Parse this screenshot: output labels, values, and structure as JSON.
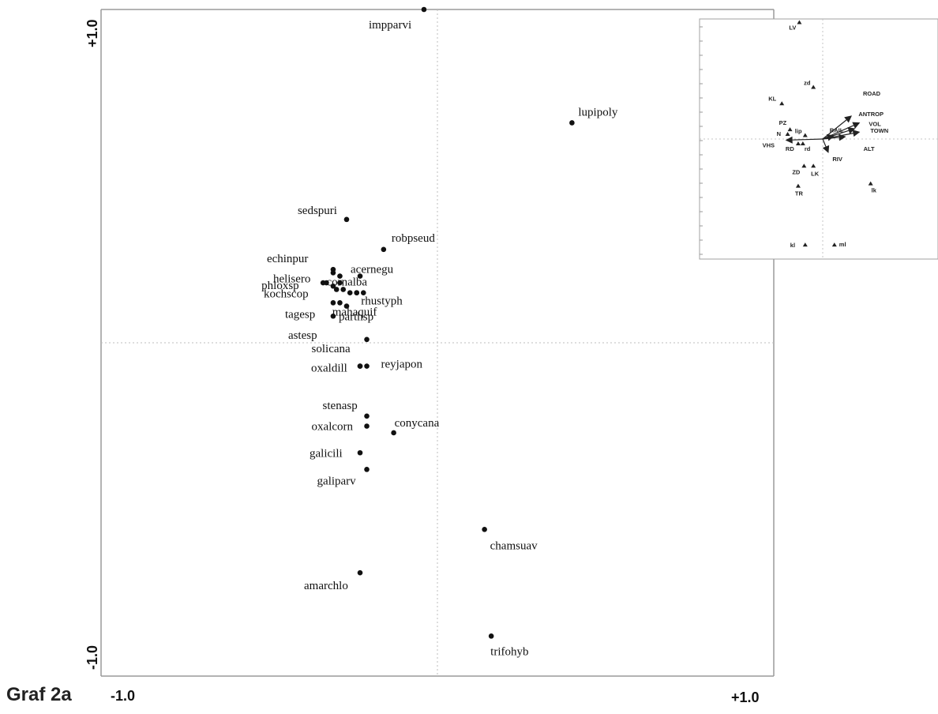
{
  "caption": "Graf 2a",
  "chart_data": [
    {
      "type": "scatter",
      "title": "",
      "xlabel": "",
      "ylabel": "",
      "xlim": [
        -1.0,
        1.0
      ],
      "ylim": [
        -1.0,
        1.0
      ],
      "x_tick_labels": [
        "-1.0",
        "+1.0"
      ],
      "y_tick_labels": [
        "+1.0",
        "-1.0"
      ],
      "grid": false,
      "zero_lines": true,
      "points": [
        {
          "label": "impparvi",
          "x": -0.04,
          "y": 1.0
        },
        {
          "label": "lupipoly",
          "x": 0.4,
          "y": 0.66
        },
        {
          "label": "sedspuri",
          "x": -0.27,
          "y": 0.37
        },
        {
          "label": "robpseud",
          "x": -0.16,
          "y": 0.28
        },
        {
          "label": "echinpur",
          "x": -0.31,
          "y": 0.22
        },
        {
          "label": "helisero",
          "x": -0.31,
          "y": 0.21
        },
        {
          "label": "cornalba",
          "x": -0.29,
          "y": 0.2
        },
        {
          "label": "acernegu",
          "x": -0.23,
          "y": 0.2
        },
        {
          "label": "phloxsp",
          "x": -0.34,
          "y": 0.18
        },
        {
          "label": "kochscop",
          "x": -0.31,
          "y": 0.17
        },
        {
          "label": "rhustyph",
          "x": -0.22,
          "y": 0.15
        },
        {
          "label": "parthsp",
          "x": -0.27,
          "y": 0.11
        },
        {
          "label": "tagesp",
          "x": -0.31,
          "y": 0.12
        },
        {
          "label": "astesp",
          "x": -0.31,
          "y": 0.08
        },
        {
          "label": "mahaquif",
          "x": -0.24,
          "y": 0.15
        },
        {
          "label": "solicana",
          "x": -0.21,
          "y": 0.01
        },
        {
          "label": "reyjapon",
          "x": -0.21,
          "y": -0.07
        },
        {
          "label": "oxaldill",
          "x": -0.23,
          "y": -0.07
        },
        {
          "label": "stenasp",
          "x": -0.21,
          "y": -0.22
        },
        {
          "label": "oxalcorn",
          "x": -0.21,
          "y": -0.25
        },
        {
          "label": "conycana",
          "x": -0.13,
          "y": -0.27
        },
        {
          "label": "galicili",
          "x": -0.23,
          "y": -0.33
        },
        {
          "label": "galiparv",
          "x": -0.21,
          "y": -0.38
        },
        {
          "label": "chamsuav",
          "x": 0.14,
          "y": -0.56
        },
        {
          "label": "amarchlo",
          "x": -0.23,
          "y": -0.69
        },
        {
          "label": "trifohyb",
          "x": 0.16,
          "y": -0.88
        }
      ],
      "unlabeled_points": [
        {
          "x": -0.33,
          "y": 0.18
        },
        {
          "x": -0.29,
          "y": 0.18
        },
        {
          "x": -0.3,
          "y": 0.16
        },
        {
          "x": -0.28,
          "y": 0.16
        },
        {
          "x": -0.26,
          "y": 0.15
        },
        {
          "x": -0.24,
          "y": 0.15
        },
        {
          "x": -0.29,
          "y": 0.12
        },
        {
          "x": -0.23,
          "y": -0.07
        }
      ]
    },
    {
      "type": "scatter",
      "title": "",
      "xlabel": "",
      "ylabel": "",
      "xlim": [
        -1.0,
        1.0
      ],
      "ylim": [
        -1.0,
        1.0
      ],
      "zero_lines": true,
      "arrows": [
        {
          "label": "ROAD",
          "x": 0.25,
          "y": 0.2
        },
        {
          "label": "ANTROP",
          "x": 0.32,
          "y": 0.14
        },
        {
          "label": "VOL",
          "x": 0.28,
          "y": 0.09
        },
        {
          "label": "TOWN",
          "x": 0.32,
          "y": 0.06
        },
        {
          "label": "RAIL",
          "x": 0.1,
          "y": 0.03
        },
        {
          "label": "ALT",
          "x": 0.2,
          "y": 0.02
        },
        {
          "label": "RIV",
          "x": 0.05,
          "y": -0.12
        },
        {
          "label": "VHS",
          "x": -0.32,
          "y": -0.01
        }
      ],
      "centroids": [
        {
          "label": "LV",
          "x": -0.2,
          "y": 0.99
        },
        {
          "label": "zd",
          "x": -0.08,
          "y": 0.44
        },
        {
          "label": "KL",
          "x": -0.35,
          "y": 0.3
        },
        {
          "label": "PZ",
          "x": -0.28,
          "y": 0.08
        },
        {
          "label": "N",
          "x": -0.3,
          "y": 0.04
        },
        {
          "label": "lip",
          "x": -0.15,
          "y": 0.03
        },
        {
          "label": "RD",
          "x": -0.21,
          "y": -0.04
        },
        {
          "label": "rd",
          "x": -0.17,
          "y": -0.04
        },
        {
          "label": "ZD",
          "x": -0.16,
          "y": -0.23
        },
        {
          "label": "LK",
          "x": -0.08,
          "y": -0.23
        },
        {
          "label": "TR",
          "x": -0.21,
          "y": -0.4
        },
        {
          "label": "lk",
          "x": 0.41,
          "y": -0.38
        },
        {
          "label": "kl",
          "x": -0.15,
          "y": -0.9
        },
        {
          "label": "ml",
          "x": 0.1,
          "y": -0.9
        }
      ]
    }
  ]
}
